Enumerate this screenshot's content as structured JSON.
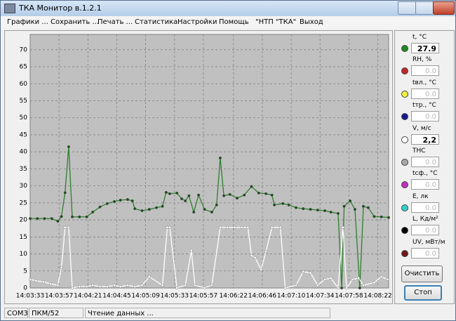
{
  "window": {
    "title": "ТКА Монитор в.1.2.1"
  },
  "menu": [
    "Графики ...",
    "Сохранить ...",
    "Печать ...",
    "Статистика",
    "Настройки",
    "Помощь",
    "\"НТП \"ТКА\"",
    "Выход"
  ],
  "chart_data": {
    "type": "line",
    "xlim": [
      0,
      298
    ],
    "xticks": [
      {
        "value": 0,
        "label": "14:03:33"
      },
      {
        "value": 24,
        "label": "14:03:57"
      },
      {
        "value": 48,
        "label": "14:04:21"
      },
      {
        "value": 72,
        "label": "14:04:45"
      },
      {
        "value": 96,
        "label": "14:05:09"
      },
      {
        "value": 120,
        "label": "14:05:33"
      },
      {
        "value": 144,
        "label": "14:05:57"
      },
      {
        "value": 169,
        "label": "14:06:22"
      },
      {
        "value": 193,
        "label": "14:06:46"
      },
      {
        "value": 217,
        "label": "14:07:10"
      },
      {
        "value": 241,
        "label": "14:07:34"
      },
      {
        "value": 265,
        "label": "14:07:58"
      },
      {
        "value": 289,
        "label": "14:08:22"
      }
    ],
    "ylim": [
      0,
      74.5
    ],
    "yticks": [
      0,
      5,
      10,
      15,
      20,
      25,
      30,
      35,
      40,
      45,
      50,
      55,
      60,
      65,
      70
    ],
    "grid": true,
    "series": [
      {
        "color": "#2f7f2f",
        "marker_color": "#1e4a1e",
        "x": [
          0,
          6,
          12,
          18,
          23,
          26,
          29,
          32,
          35,
          41,
          47,
          52,
          58,
          64,
          70,
          75,
          81,
          85,
          87,
          93,
          99,
          105,
          110,
          113,
          116,
          122,
          126,
          129,
          132,
          136,
          140,
          145,
          151,
          155,
          158,
          161,
          166,
          172,
          178,
          184,
          190,
          196,
          201,
          203,
          210,
          215,
          221,
          227,
          233,
          239,
          245,
          250,
          256,
          259,
          261,
          266,
          270,
          274,
          277,
          281,
          286,
          292,
          298
        ],
        "values": [
          20.4,
          20.4,
          20.4,
          20.4,
          19.6,
          21,
          28,
          41.5,
          20.9,
          20.9,
          20.9,
          22.3,
          23.8,
          24.8,
          25.4,
          25.8,
          26,
          25.6,
          23.3,
          22.7,
          23.1,
          23.6,
          24,
          28.1,
          27.7,
          27.9,
          26.2,
          25.6,
          27.1,
          22.3,
          27.3,
          23.1,
          22.3,
          24.4,
          38.2,
          27.1,
          27.5,
          26.4,
          27.3,
          29.8,
          27.9,
          27.7,
          27.3,
          24.4,
          24.8,
          24.4,
          23.6,
          23.3,
          23.1,
          22.9,
          22.7,
          22.3,
          21.9,
          0,
          24,
          25.6,
          23.1,
          0,
          24,
          23.6,
          21,
          20.9,
          20.7
        ]
      },
      {
        "color": "#ffffff",
        "marker_color": "#ffffff",
        "x": [
          0,
          5,
          11,
          17,
          23,
          26,
          29,
          32,
          35,
          41,
          47,
          52,
          58,
          64,
          70,
          75,
          81,
          87,
          93,
          99,
          110,
          114,
          116,
          122,
          129,
          134,
          137,
          145,
          151,
          158,
          164,
          170,
          176,
          181,
          184,
          187,
          192,
          196,
          201,
          208,
          212,
          221,
          227,
          233,
          239,
          245,
          250,
          256,
          260,
          263,
          268,
          273,
          277,
          286,
          292,
          297
        ],
        "values": [
          2.5,
          2.1,
          1.8,
          1.2,
          0.8,
          6,
          17.8,
          17.8,
          0,
          0.4,
          0.4,
          0.8,
          0.4,
          0.4,
          0.8,
          0.4,
          0.8,
          0.4,
          0.8,
          3.3,
          0.8,
          17.8,
          17.8,
          0,
          0.8,
          11,
          0.8,
          0,
          0.8,
          17.8,
          17.8,
          17.8,
          17.8,
          17.8,
          9.5,
          8.9,
          5.4,
          10.7,
          17.8,
          17.8,
          0,
          0.8,
          4.8,
          4.4,
          0.8,
          2.5,
          2.9,
          0,
          17.8,
          0,
          2.5,
          2.9,
          0.8,
          1.6,
          3.3,
          2.5
        ]
      }
    ]
  },
  "sensors": [
    {
      "label": "t, °C",
      "color": "#1f8a1f",
      "value": "27.9",
      "active": true
    },
    {
      "label": "RH, %",
      "color": "#c02828",
      "value": "0.0",
      "active": false
    },
    {
      "label": "tвл., °C",
      "color": "#f0f040",
      "value": "0.0",
      "active": false
    },
    {
      "label": "tтр., °C",
      "color": "#1a1a90",
      "value": "0.0",
      "active": false
    },
    {
      "label": "V, м/с",
      "color": "#ffffff",
      "value": "2,2",
      "active": true
    },
    {
      "label": "ТНС",
      "color": "#a8a8a8",
      "value": "0.0",
      "active": false
    },
    {
      "label": "tсф., °C",
      "color": "#c030c0",
      "value": "0.0",
      "active": false
    },
    {
      "label": "E, лк",
      "color": "#30d0d0",
      "value": "0.0",
      "active": false
    },
    {
      "label": "L, Кд/м²",
      "color": "#000000",
      "value": "0.0",
      "active": false
    },
    {
      "label": "UV, мВт/м",
      "color": "#701818",
      "value": "0.0",
      "active": false
    }
  ],
  "buttons": [
    "Очистить",
    "Стоп"
  ],
  "status": [
    "COM3",
    "ПКМ/52",
    "Чтение данных ..."
  ]
}
